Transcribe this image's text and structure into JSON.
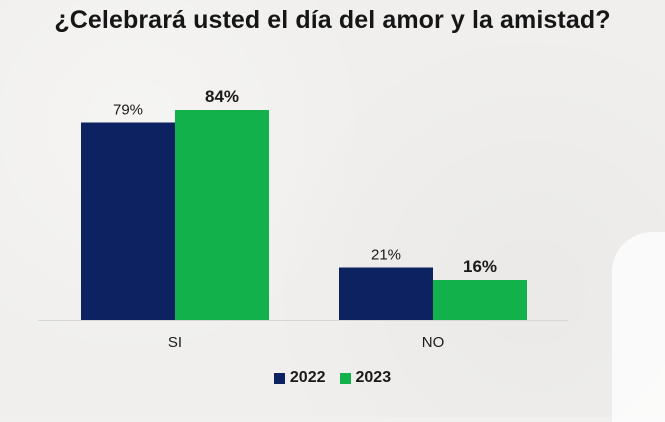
{
  "title": "¿Celebrará usted el día del amor y la amistad?",
  "chart_data": {
    "type": "bar",
    "title": "¿Celebrará usted el día del amor y la amistad?",
    "categories": [
      "SI",
      "NO"
    ],
    "series": [
      {
        "name": "2022",
        "values": [
          79,
          21
        ],
        "labels": [
          "79%",
          "21%"
        ],
        "color": "#0d2260"
      },
      {
        "name": "2023",
        "values": [
          84,
          16
        ],
        "labels": [
          "84%",
          "16%"
        ],
        "color": "#12b14c"
      }
    ],
    "ylim": [
      0,
      100
    ],
    "grid": false,
    "legend_position": "bottom"
  }
}
